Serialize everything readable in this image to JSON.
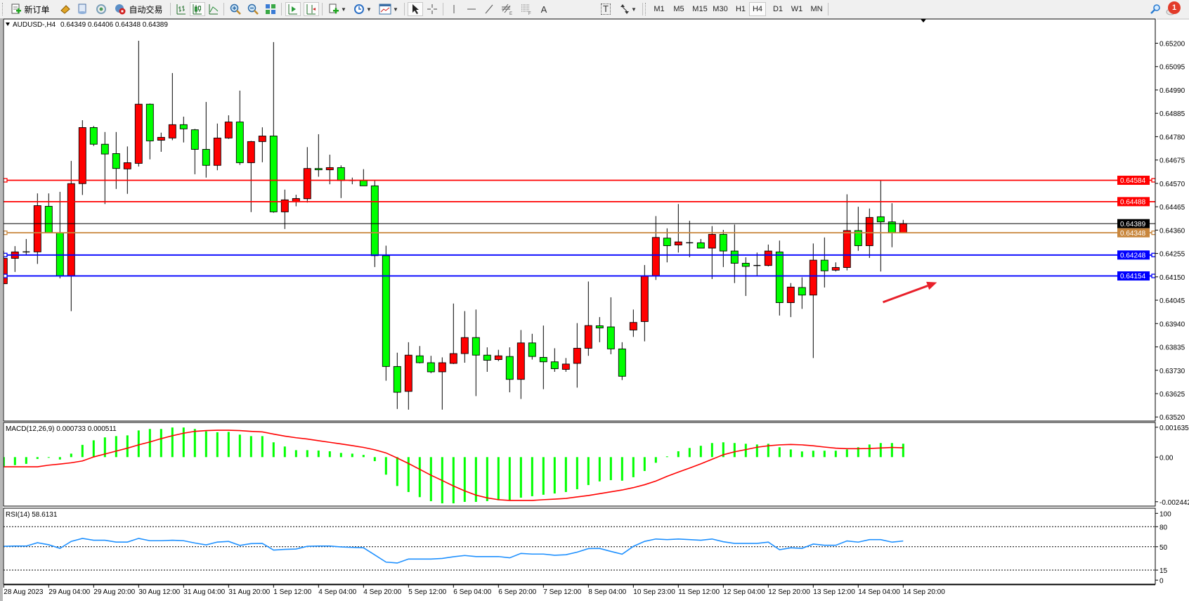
{
  "toolbar": {
    "new_order_label": "新订单",
    "auto_trading_label": "自动交易",
    "timeframes": [
      "M1",
      "M5",
      "M15",
      "M30",
      "H1",
      "H4",
      "D1",
      "W1",
      "MN"
    ],
    "active_timeframe": "H4",
    "channel_letter": "E",
    "fibo_letter": "F",
    "text_tool": "A",
    "text_label_tool": "T",
    "notification_count": "1",
    "icons": [
      "new-order-icon",
      "market-watch-icon",
      "data-window-icon",
      "navigator-icon",
      "auto-trading-icon",
      "bar-chart-icon",
      "candlestick-icon",
      "line-chart-icon",
      "zoom-in-icon",
      "zoom-out-icon",
      "tile-windows-icon",
      "chart-shift-icon",
      "auto-scroll-icon",
      "indicators-icon",
      "periods-icon",
      "templates-icon",
      "cursor-icon",
      "crosshair-icon",
      "vertical-line-icon",
      "horizontal-line-icon",
      "trendline-icon",
      "equidistant-channel-icon",
      "fibonacci-icon",
      "text-icon",
      "text-label-icon",
      "arrows-icon",
      "search-icon",
      "notification-icon"
    ]
  },
  "chart_header": {
    "symbol_tf": "AUDUSD-,H4",
    "ohlc_text": "0.64349 0.64406 0.64348 0.64389"
  },
  "colors": {
    "bull": "#ff0000",
    "bear": "#00ff00",
    "macd_hist": "#00ff00",
    "macd_signal": "#ff0000",
    "rsi": "#1e90ff",
    "arrow": "#e8202a"
  },
  "chart_data": [
    {
      "type": "candlestick",
      "symbol": "AUDUSD-",
      "timeframe": "H4",
      "candle_color_rule": "red = close above open, green = close below open",
      "ylim": [
        0.6352,
        0.6525
      ],
      "y_ticks": [
        "0.65200",
        "0.65095",
        "0.64990",
        "0.64885",
        "0.64780",
        "0.64675",
        "0.64570",
        "0.64465",
        "0.64360",
        "0.64255",
        "0.64150",
        "0.64045",
        "0.63940",
        "0.63835",
        "0.63730",
        "0.63625",
        "0.63520"
      ],
      "x_tick_labels": [
        "28 Aug 2023",
        "29 Aug 04:00",
        "29 Aug 20:00",
        "30 Aug 12:00",
        "31 Aug 04:00",
        "31 Aug 20:00",
        "1 Sep 12:00",
        "4 Sep 04:00",
        "4 Sep 20:00",
        "5 Sep 12:00",
        "6 Sep 04:00",
        "6 Sep 20:00",
        "7 Sep 12:00",
        "8 Sep 04:00",
        "10 Sep 23:00",
        "11 Sep 12:00",
        "12 Sep 04:00",
        "12 Sep 20:00",
        "13 Sep 12:00",
        "14 Sep 04:00",
        "14 Sep 20:00"
      ],
      "x_tick_every_bars": 4,
      "ohlc": [
        [
          0.64119,
          0.64267,
          0.64119,
          0.64233
        ],
        [
          0.64233,
          0.64288,
          0.64172,
          0.64262
        ],
        [
          0.64262,
          0.6432,
          0.64249,
          0.64262
        ],
        [
          0.64262,
          0.64525,
          0.64208,
          0.6447
        ],
        [
          0.64467,
          0.64525,
          0.64348,
          0.64348
        ],
        [
          0.64348,
          0.64532,
          0.64143,
          0.64153
        ],
        [
          0.64153,
          0.64671,
          0.63996,
          0.64569
        ],
        [
          0.64569,
          0.64854,
          0.64518,
          0.64821
        ],
        [
          0.64821,
          0.64828,
          0.64738,
          0.64746
        ],
        [
          0.64746,
          0.64801,
          0.64477,
          0.64702
        ],
        [
          0.64704,
          0.64801,
          0.64545,
          0.64637
        ],
        [
          0.64635,
          0.64736,
          0.64523,
          0.64663
        ],
        [
          0.6466,
          0.65211,
          0.64646,
          0.64926
        ],
        [
          0.64926,
          0.64929,
          0.64678,
          0.64761
        ],
        [
          0.64764,
          0.64798,
          0.64712,
          0.64777
        ],
        [
          0.64774,
          0.65066,
          0.64764,
          0.64834
        ],
        [
          0.64834,
          0.6487,
          0.64754,
          0.64815
        ],
        [
          0.64811,
          0.64815,
          0.64611,
          0.64723
        ],
        [
          0.64723,
          0.64936,
          0.64596,
          0.64651
        ],
        [
          0.64651,
          0.64839,
          0.64629,
          0.64774
        ],
        [
          0.64774,
          0.64876,
          0.6477,
          0.64846
        ],
        [
          0.64846,
          0.64987,
          0.64653,
          0.64663
        ],
        [
          0.64663,
          0.64761,
          0.64441,
          0.64758
        ],
        [
          0.64758,
          0.64822,
          0.64665,
          0.64783
        ],
        [
          0.64783,
          0.65205,
          0.64438,
          0.64442
        ],
        [
          0.64442,
          0.64542,
          0.64365,
          0.64496
        ],
        [
          0.64488,
          0.64519,
          0.64467,
          0.64502
        ],
        [
          0.64501,
          0.64733,
          0.64484,
          0.64637
        ],
        [
          0.64637,
          0.64791,
          0.646,
          0.64631
        ],
        [
          0.64631,
          0.64699,
          0.64566,
          0.64641
        ],
        [
          0.64641,
          0.64651,
          0.64504,
          0.64583
        ],
        [
          0.64583,
          0.64596,
          0.64566,
          0.64583
        ],
        [
          0.64583,
          0.64634,
          0.64559,
          0.64559
        ],
        [
          0.64559,
          0.64583,
          0.64194,
          0.64245
        ],
        [
          0.64245,
          0.6429,
          0.63683,
          0.63747
        ],
        [
          0.63747,
          0.63809,
          0.63556,
          0.63631
        ],
        [
          0.63635,
          0.63856,
          0.63553,
          0.63798
        ],
        [
          0.63795,
          0.63839,
          0.63761,
          0.63764
        ],
        [
          0.63764,
          0.63795,
          0.63717,
          0.63723
        ],
        [
          0.63723,
          0.63788,
          0.63553,
          0.63764
        ],
        [
          0.63761,
          0.6403,
          0.63758,
          0.63805
        ],
        [
          0.63805,
          0.63996,
          0.63764,
          0.63877
        ],
        [
          0.63877,
          0.64003,
          0.63614,
          0.63798
        ],
        [
          0.63798,
          0.63833,
          0.63723,
          0.63775
        ],
        [
          0.63778,
          0.63822,
          0.63771,
          0.63795
        ],
        [
          0.63792,
          0.63833,
          0.63631,
          0.63689
        ],
        [
          0.63689,
          0.63911,
          0.63601,
          0.63853
        ],
        [
          0.63853,
          0.63894,
          0.63778,
          0.63792
        ],
        [
          0.63788,
          0.63931,
          0.63645,
          0.63768
        ],
        [
          0.63768,
          0.63829,
          0.63723,
          0.63737
        ],
        [
          0.63734,
          0.63785,
          0.63723,
          0.63758
        ],
        [
          0.63761,
          0.63942,
          0.63652,
          0.63829
        ],
        [
          0.63829,
          0.64129,
          0.63795,
          0.63931
        ],
        [
          0.6393,
          0.63969,
          0.63856,
          0.6392
        ],
        [
          0.63925,
          0.64058,
          0.63802,
          0.63826
        ],
        [
          0.63826,
          0.63856,
          0.63686,
          0.63703
        ],
        [
          0.63911,
          0.64003,
          0.6388,
          0.63945
        ],
        [
          0.63949,
          0.64203,
          0.6386,
          0.64153
        ],
        [
          0.64153,
          0.64423,
          0.64136,
          0.64327
        ],
        [
          0.64324,
          0.64368,
          0.64215,
          0.6429
        ],
        [
          0.64293,
          0.64477,
          0.64259,
          0.64307
        ],
        [
          0.64303,
          0.64402,
          0.64238,
          0.64303
        ],
        [
          0.64303,
          0.6432,
          0.64279,
          0.64279
        ],
        [
          0.64279,
          0.64378,
          0.6414,
          0.64341
        ],
        [
          0.64341,
          0.64361,
          0.64194,
          0.64266
        ],
        [
          0.64266,
          0.64385,
          0.64122,
          0.64211
        ],
        [
          0.64211,
          0.64238,
          0.64064,
          0.64197
        ],
        [
          0.64201,
          0.64259,
          0.64157,
          0.64201
        ],
        [
          0.64201,
          0.64295,
          0.64197,
          0.64266
        ],
        [
          0.64262,
          0.64313,
          0.63976,
          0.64034
        ],
        [
          0.64034,
          0.64122,
          0.63969,
          0.64104
        ],
        [
          0.64102,
          0.64148,
          0.64006,
          0.64068
        ],
        [
          0.64068,
          0.643,
          0.63785,
          0.64225
        ],
        [
          0.64225,
          0.64327,
          0.64102,
          0.64177
        ],
        [
          0.6418,
          0.64215,
          0.64174,
          0.64192
        ],
        [
          0.64192,
          0.64521,
          0.64179,
          0.64358
        ],
        [
          0.64358,
          0.64465,
          0.64267,
          0.6429
        ],
        [
          0.6429,
          0.64457,
          0.64235,
          0.64417
        ],
        [
          0.6442,
          0.64584,
          0.64174,
          0.64397
        ],
        [
          0.64397,
          0.64481,
          0.64283,
          0.64348
        ],
        [
          0.64348,
          0.64406,
          0.64348,
          0.64389
        ]
      ],
      "horizontal_levels": [
        {
          "price": "0.64584",
          "color": "#ff0000",
          "handles": true
        },
        {
          "price": "0.64488",
          "color": "#ff0000",
          "handles": false
        },
        {
          "price": "0.64389",
          "color": "#000000",
          "handles": false,
          "thin": true
        },
        {
          "price": "0.64348",
          "color": "#c8863c",
          "handles": true
        },
        {
          "price": "0.64248",
          "color": "#0000ff",
          "handles": true
        },
        {
          "price": "0.64154",
          "color": "#0000ff",
          "handles": true
        }
      ],
      "annotation": {
        "type": "arrow",
        "color": "#e8202a",
        "from_bar": 78.2,
        "from_price": 0.64036,
        "to_bar": 83.0,
        "to_price": 0.64125
      }
    },
    {
      "type": "bar+line",
      "label": "MACD(12,26,9) 0.000733 0.000511",
      "ylim": [
        -0.002442,
        0.001635
      ],
      "y_ticks": [
        "0.001635",
        "0.00",
        "-0.002442"
      ],
      "histogram": [
        -0.0005,
        -0.00044,
        -0.00037,
        -0.0001,
        -2e-05,
        -0.00013,
        0.00019,
        0.00067,
        0.00092,
        0.00108,
        0.00115,
        0.00119,
        0.00146,
        0.00154,
        0.00154,
        0.00162,
        0.00162,
        0.00154,
        0.00141,
        0.00136,
        0.00138,
        0.00123,
        0.00115,
        0.00115,
        0.00081,
        0.00058,
        0.00038,
        0.00038,
        0.00036,
        0.00032,
        0.00023,
        0.00019,
        0.00012,
        -0.00022,
        -0.00096,
        -0.00158,
        -0.00191,
        -0.00219,
        -0.00241,
        -0.00253,
        -0.00253,
        -0.00245,
        -0.00245,
        -0.00241,
        -0.00236,
        -0.00236,
        -0.00222,
        -0.00214,
        -0.00206,
        -0.00199,
        -0.00191,
        -0.00176,
        -0.00153,
        -0.00133,
        -0.00126,
        -0.00129,
        -0.0011,
        -0.00076,
        -0.00031,
        4e-05,
        0.00032,
        0.0005,
        0.00062,
        0.00077,
        0.00081,
        0.00077,
        0.00073,
        0.00069,
        0.00073,
        0.00054,
        0.00042,
        0.00031,
        0.00035,
        0.00035,
        0.00035,
        0.00042,
        0.00054,
        0.00069,
        0.00077,
        0.00077,
        0.000733
      ],
      "signal": [
        -0.00053,
        -0.00053,
        -0.00053,
        -0.00053,
        -0.00044,
        -0.00038,
        -0.00031,
        -0.00021,
        1e-05,
        0.00017,
        0.00033,
        0.00049,
        0.00067,
        0.00083,
        0.00101,
        0.00117,
        0.00131,
        0.00141,
        0.00145,
        0.00147,
        0.00147,
        0.00145,
        0.00141,
        0.00138,
        0.00126,
        0.00115,
        0.00106,
        0.00099,
        0.0009,
        0.00081,
        0.00072,
        0.00063,
        0.00053,
        0.0004,
        0.00023,
        -5e-05,
        -0.00035,
        -0.00067,
        -0.00099,
        -0.00128,
        -0.00158,
        -0.00185,
        -0.00208,
        -0.00223,
        -0.00233,
        -0.00237,
        -0.00237,
        -0.00237,
        -0.00233,
        -0.0023,
        -0.00226,
        -0.00218,
        -0.0021,
        -0.002,
        -0.0019,
        -0.0018,
        -0.00167,
        -0.00151,
        -0.00131,
        -0.00105,
        -0.00082,
        -0.0006,
        -0.00037,
        -0.00012,
        0.00013,
        0.00029,
        0.00041,
        0.00054,
        0.00062,
        0.00067,
        0.00069,
        0.00067,
        0.00062,
        0.00055,
        0.00049,
        0.00046,
        0.00046,
        0.00047,
        0.0005,
        0.00053,
        0.000511
      ]
    },
    {
      "type": "line",
      "label": "RSI(14) 58.6131",
      "ylim": [
        0,
        100
      ],
      "y_ticks": [
        "100",
        "80",
        "50",
        "15",
        "0"
      ],
      "levels": [
        80,
        50,
        15
      ],
      "values": [
        50.6,
        51,
        51,
        56,
        53,
        47.5,
        58,
        62.5,
        59.7,
        59.7,
        57,
        57,
        62.5,
        59,
        59,
        59.7,
        59,
        55.6,
        52.8,
        57,
        58,
        52,
        54.7,
        55,
        45,
        46,
        46.6,
        50.6,
        51,
        51,
        49.7,
        49,
        48.4,
        37.8,
        27,
        25.6,
        31.6,
        31.6,
        31.6,
        32.5,
        35,
        36.9,
        35.3,
        35.3,
        35.3,
        33.4,
        40,
        39,
        39,
        37.2,
        38,
        41.9,
        47.2,
        47.5,
        43,
        38.8,
        50.6,
        58,
        61.6,
        60.6,
        61.6,
        60.6,
        59.7,
        61.6,
        57.5,
        55,
        55,
        55,
        56.9,
        45.6,
        48.4,
        47.5,
        54,
        52.2,
        52.2,
        58.7,
        56.9,
        60.6,
        60.6,
        56.9,
        58.61
      ]
    }
  ]
}
